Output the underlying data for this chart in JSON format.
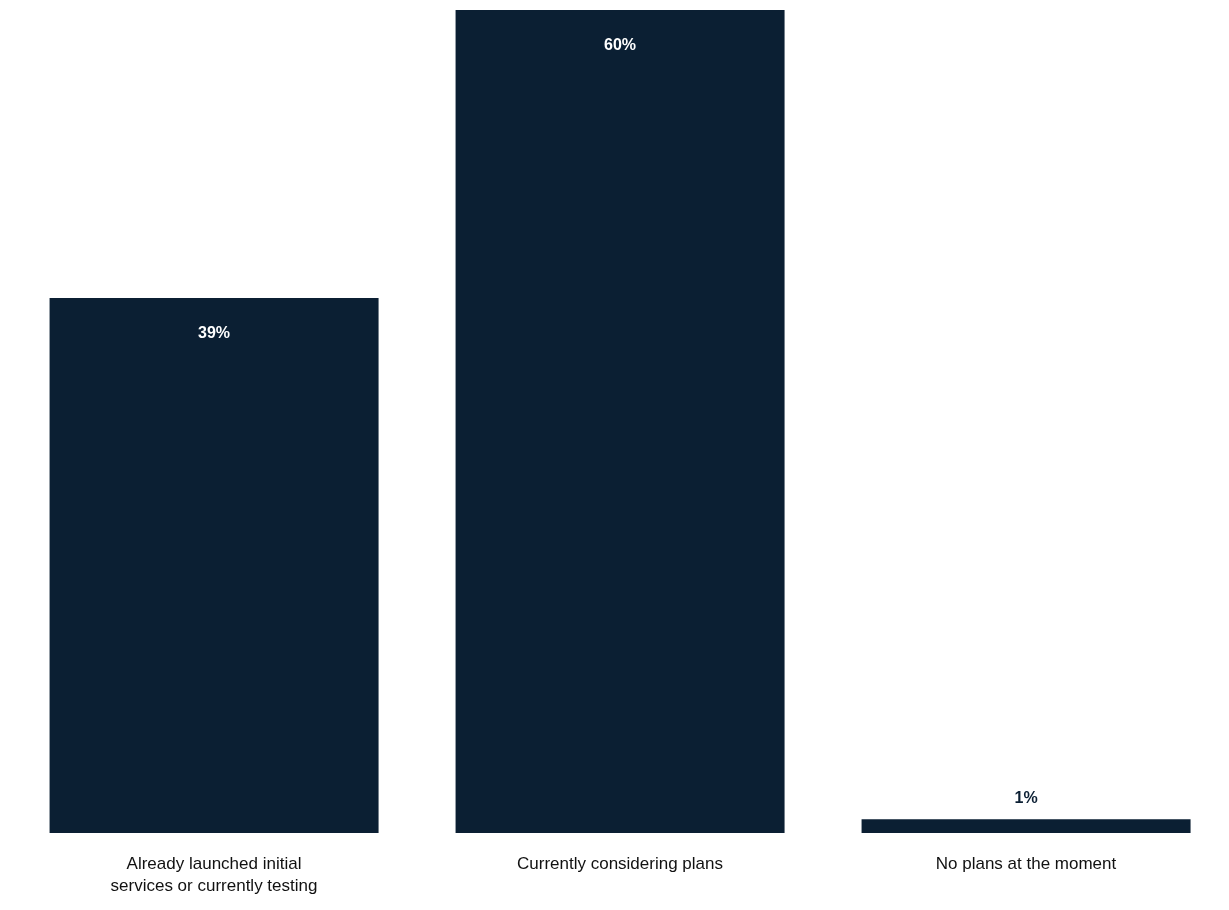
{
  "chart_data": {
    "type": "bar",
    "categories": [
      "Already launched initial services or currently testing",
      "Currently considering plans",
      "No plans at the moment"
    ],
    "values": [
      39,
      60,
      1
    ],
    "value_labels": [
      "39%",
      "60%",
      "1%"
    ],
    "color": "#0b1f33"
  }
}
